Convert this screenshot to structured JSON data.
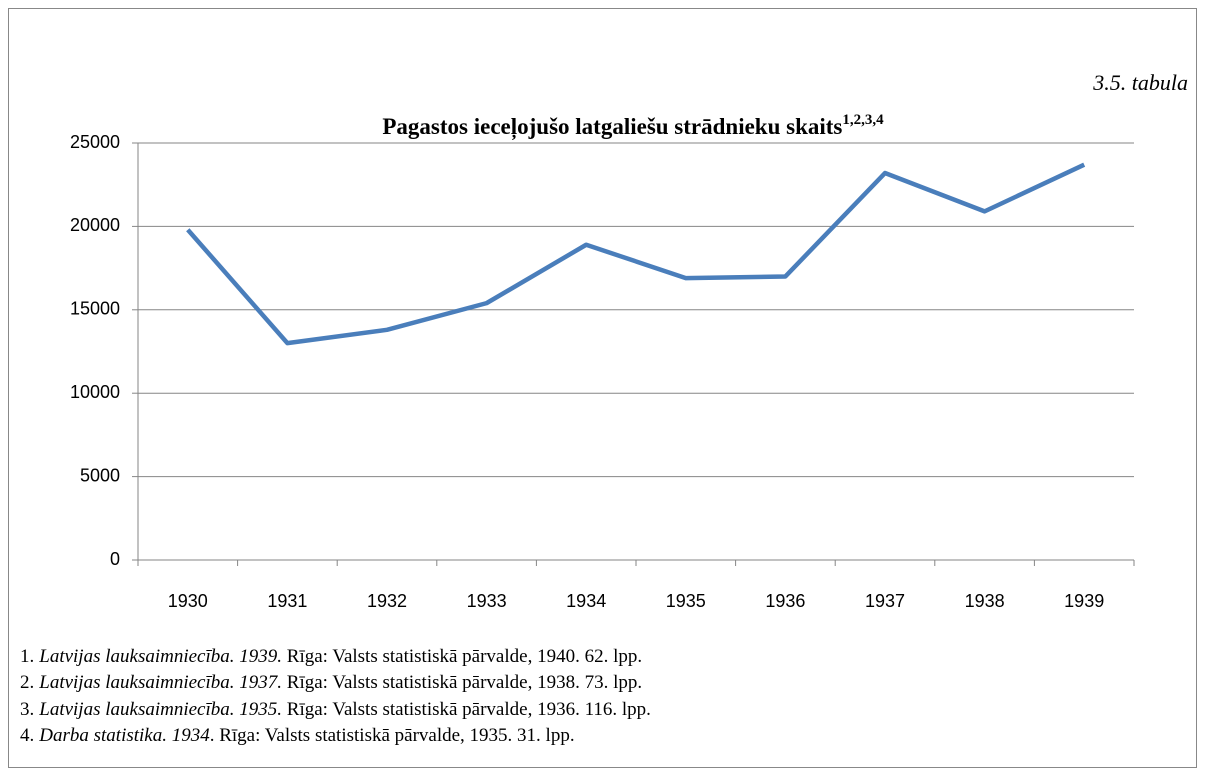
{
  "chart_data": {
    "type": "line",
    "table_label": "3.5. tabula",
    "title": "Pagastos ieceļojušo latgaliešu strādnieku skaits",
    "title_superscript": "1,2,3,4",
    "categories": [
      "1930",
      "1931",
      "1932",
      "1933",
      "1934",
      "1935",
      "1936",
      "1937",
      "1938",
      "1939"
    ],
    "series": [
      {
        "color": "#4a7ebb",
        "values": [
          19800,
          13000,
          13800,
          15400,
          18900,
          16900,
          17000,
          23200,
          20900,
          23700
        ]
      }
    ],
    "ylim": [
      0,
      25000
    ],
    "yticks": [
      0,
      5000,
      10000,
      15000,
      20000,
      25000
    ],
    "grid": true
  },
  "footnotes": [
    {
      "num": "1.",
      "title": "Latvijas lauksaimniecība. 1939.",
      "rest": " Rīga: Valsts statistiskā pārvalde, 1940. 62. lpp."
    },
    {
      "num": "2.",
      "title": "Latvijas lauksaimniecība. 1937.",
      "rest": " Rīga: Valsts statistiskā pārvalde, 1938. 73. lpp."
    },
    {
      "num": "3.",
      "title": "Latvijas lauksaimniecība. 1935.",
      "rest": " Rīga: Valsts statistiskā pārvalde, 1936. 116. lpp."
    },
    {
      "num": "4.",
      "title": "Darba statistika. 1934",
      "rest": ". Rīga: Valsts statistiskā pārvalde, 1935. 31. lpp."
    }
  ]
}
